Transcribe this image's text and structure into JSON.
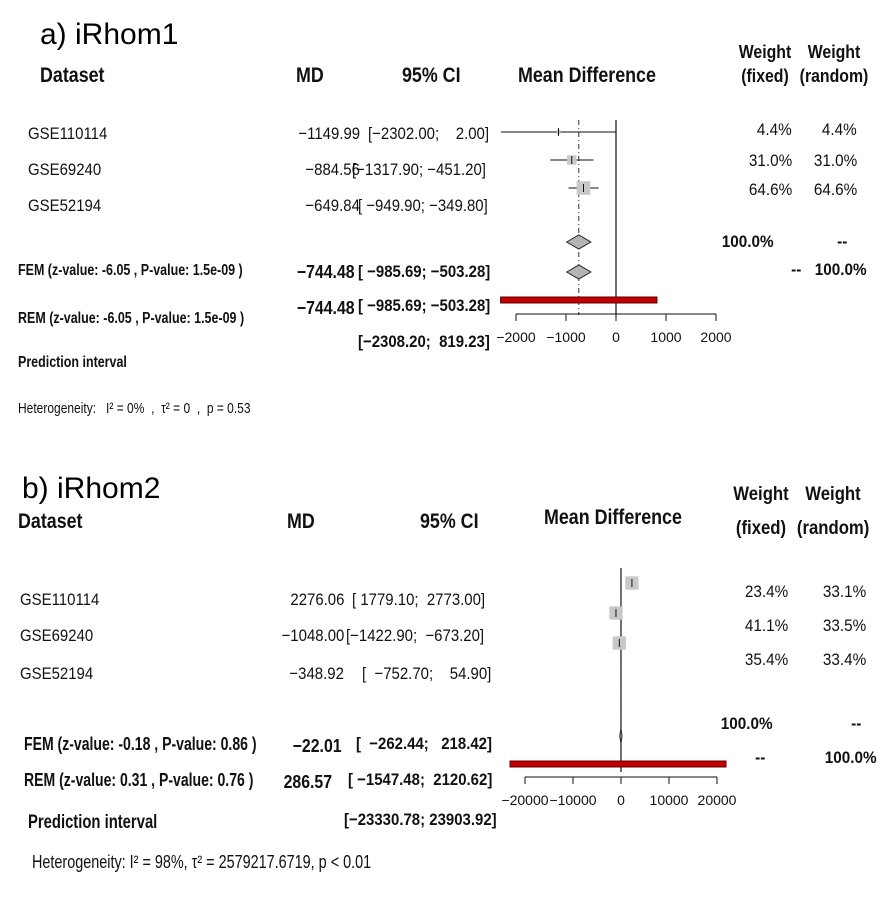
{
  "chart_data": [
    {
      "type": "forest",
      "title": "a) iRhom1",
      "columns": {
        "dataset": "Dataset",
        "md": "MD",
        "ci": "95% CI",
        "plot": "Mean Difference",
        "weight_fixed": "Weight\n(fixed)",
        "weight_random": "Weight\n(random)"
      },
      "studies": [
        {
          "name": "GSE110114",
          "md": -1149.99,
          "md_text": "−1149.99",
          "ci_low": -2302.0,
          "ci_high": 2.0,
          "ci_text": "[−2302.00;    2.00]",
          "w_fixed": "4.4%",
          "w_random": "4.4%",
          "weight": 4.4
        },
        {
          "name": "GSE69240",
          "md": -884.56,
          "md_text": "−884.56",
          "ci_low": -1317.9,
          "ci_high": -451.2,
          "ci_text": "[−1317.90; −451.20]",
          "w_fixed": "31.0%",
          "w_random": "31.0%",
          "weight": 31.0
        },
        {
          "name": "GSE52194",
          "md": -649.84,
          "md_text": "−649.84",
          "ci_low": -949.9,
          "ci_high": -349.8,
          "ci_text": "[ −949.90; −349.80]",
          "w_fixed": "64.6%",
          "w_random": "64.6%",
          "weight": 64.6
        }
      ],
      "fem": {
        "label": "FEM (z-value: -6.05 , P-value:  1.5e-09 )",
        "md": -744.48,
        "md_text": "−744.48",
        "ci_low": -985.69,
        "ci_high": -503.28,
        "ci_text": "[ −985.69; −503.28]",
        "w_fixed": "100.0%",
        "w_random": "--"
      },
      "rem": {
        "label": "REM (z-value: -6.05 , P-value:  1.5e-09 )",
        "md": -744.48,
        "md_text": "−744.48",
        "ci_low": -985.69,
        "ci_high": -503.28,
        "ci_text": "[ −985.69; −503.28]",
        "w_fixed": "--",
        "w_random": "100.0%"
      },
      "prediction": {
        "label": "Prediction interval",
        "ci_low": -2308.2,
        "ci_high": 819.23,
        "ci_text": "[−2308.20;  819.23]"
      },
      "heterogeneity": "Heterogeneity:   I² = 0%  ,  τ² = 0  ,  p = 0.53",
      "xlim": [
        -2000,
        2000
      ],
      "ticks": [
        -2000,
        -1000,
        0,
        1000,
        2000
      ],
      "tick_labels": [
        "−2000",
        "−1000",
        "0",
        "1000",
        "2000"
      ]
    },
    {
      "type": "forest",
      "title": "b) iRhom2",
      "columns": {
        "dataset": "Dataset",
        "md": "MD",
        "ci": "95% CI",
        "plot": "Mean Difference",
        "weight_fixed": "Weight\n(fixed)",
        "weight_random": "Weight\n(random)"
      },
      "studies": [
        {
          "name": "GSE110114",
          "md": 2276.06,
          "md_text": "2276.06",
          "ci_low": 1779.1,
          "ci_high": 2773.0,
          "ci_text": "[ 1779.10;  2773.00]",
          "w_fixed": "23.4%",
          "w_random": "33.1%",
          "weight": 33.1
        },
        {
          "name": "GSE69240",
          "md": -1048.0,
          "md_text": "−1048.00",
          "ci_low": -1422.9,
          "ci_high": -673.2,
          "ci_text": "[−1422.90;  −673.20]",
          "w_fixed": "41.1%",
          "w_random": "33.5%",
          "weight": 33.5
        },
        {
          "name": "GSE52194",
          "md": -348.92,
          "md_text": "−348.92",
          "ci_low": -752.7,
          "ci_high": 54.9,
          "ci_text": "[  −752.70;    54.90]",
          "w_fixed": "35.4%",
          "w_random": "33.4%",
          "weight": 33.4
        }
      ],
      "fem": {
        "label": "FEM (z-value: -0.18 , P-value:  0.86 )",
        "md": -22.01,
        "md_text": "−22.01",
        "ci_low": -262.44,
        "ci_high": 218.42,
        "ci_text": "[  −262.44;   218.42]",
        "w_fixed": "100.0%",
        "w_random": "--"
      },
      "rem": {
        "label": "REM (z-value: 0.31 , P-value:  0.76 )",
        "md": 286.57,
        "md_text": "286.57",
        "ci_low": -1547.48,
        "ci_high": 2120.62,
        "ci_text": "[ −1547.48;  2120.62]",
        "w_fixed": "--",
        "w_random": "100.0%"
      },
      "prediction": {
        "label": "Prediction interval",
        "ci_low": -23330.78,
        "ci_high": 23903.92,
        "ci_text": "[−23330.78; 23903.92]"
      },
      "heterogeneity": "Heterogeneity: I² = 98%, τ² = 2579217.6719, p < 0.01",
      "xlim": [
        -20000,
        20000
      ],
      "ticks": [
        -20000,
        -10000,
        0,
        10000,
        20000
      ],
      "tick_labels": [
        "−20000",
        "−10000",
        "0",
        "10000",
        "20000"
      ]
    }
  ],
  "colors": {
    "study_box": "#c8c8c8",
    "diamond_fill": "#b4b4b4",
    "prediction_bar": "#c00000",
    "prediction_border": "#600000"
  }
}
